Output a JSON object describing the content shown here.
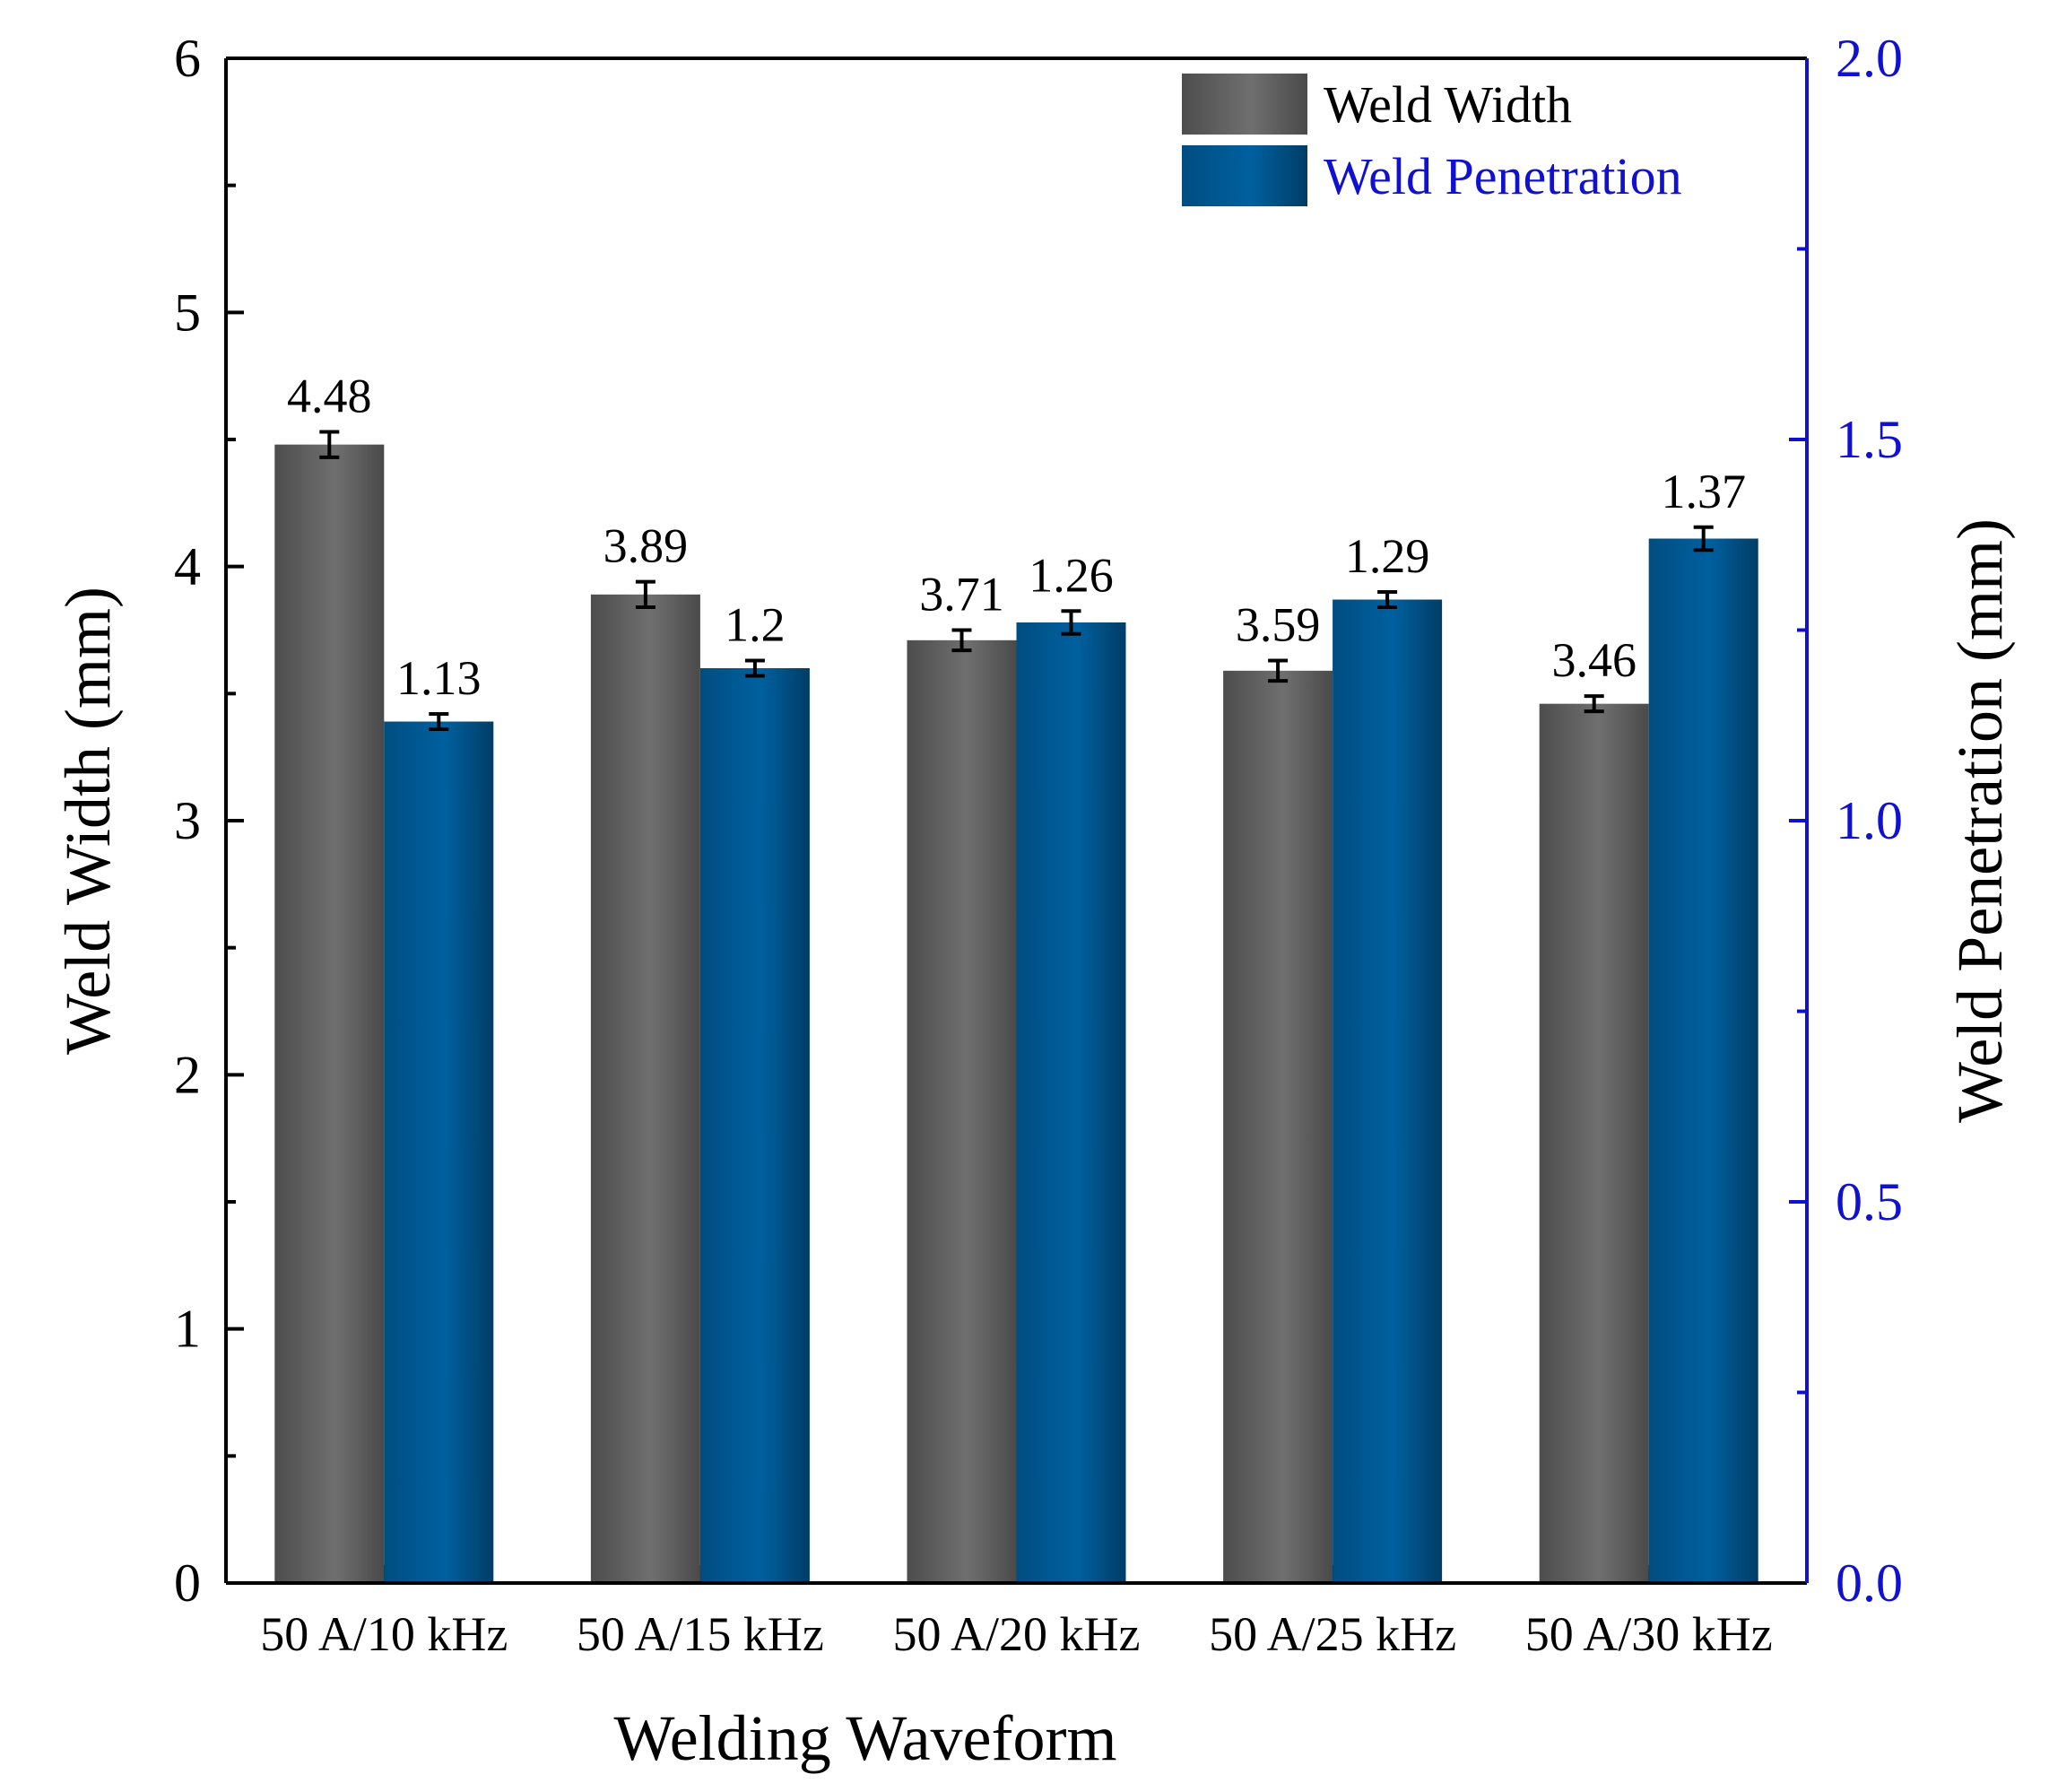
{
  "chart_data": {
    "type": "bar",
    "categories": [
      "50 A/10 kHz",
      "50 A/15 kHz",
      "50 A/20 kHz",
      "50 A/25 kHz",
      "50 A/30 kHz"
    ],
    "series": [
      {
        "name": "Weld Width",
        "axis": "left",
        "values": [
          4.48,
          3.89,
          3.71,
          3.59,
          3.46
        ],
        "labels": [
          "4.48",
          "3.89",
          "3.71",
          "3.59",
          "3.46"
        ],
        "errors": [
          0.05,
          0.05,
          0.04,
          0.04,
          0.03
        ],
        "color": "#6f6f6f"
      },
      {
        "name": "Weld Penetration",
        "axis": "right",
        "values": [
          1.13,
          1.2,
          1.26,
          1.29,
          1.37
        ],
        "labels": [
          "1.13",
          "1.2",
          "1.26",
          "1.29",
          "1.37"
        ],
        "errors": [
          0.01,
          0.01,
          0.015,
          0.01,
          0.015
        ],
        "color": "#00609f"
      }
    ],
    "xlabel": "Welding Waveform",
    "ylabel": "Weld Width (mm)",
    "ylabel_right": "Weld Penetration (mm)",
    "ylim": [
      0,
      6
    ],
    "ylim_right": [
      0,
      2.0
    ],
    "yticks": [
      "0",
      "1",
      "2",
      "3",
      "4",
      "5",
      "6"
    ],
    "yticks_right": [
      "0.0",
      "0.5",
      "1.0",
      "1.5",
      "2.0"
    ],
    "legend_position": "top-right",
    "right_axis_color": "#1010d0"
  }
}
